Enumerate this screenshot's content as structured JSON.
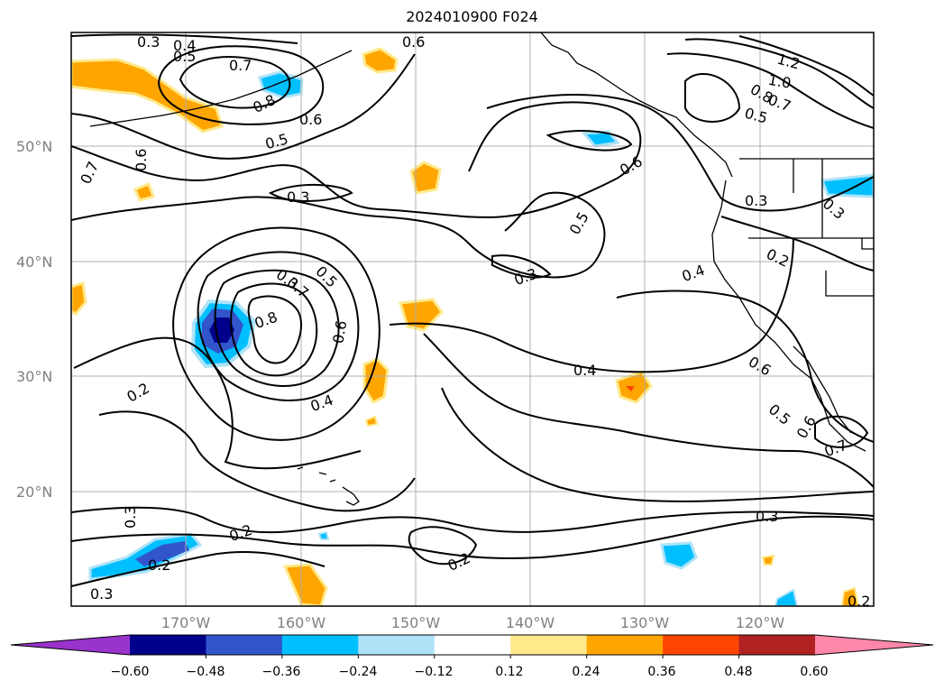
{
  "title": "2024010900 F024",
  "lat_labels": [
    "50°N",
    "40°N",
    "30°N",
    "20°N"
  ],
  "lon_labels": [
    "170°W",
    "160°W",
    "150°W",
    "140°W",
    "130°W",
    "120°W"
  ],
  "colorbar": {
    "ticks": [
      "−0.60",
      "−0.48",
      "−0.36",
      "−0.24",
      "−0.12",
      "0.12",
      "0.24",
      "0.36",
      "0.48",
      "0.60"
    ],
    "colors": [
      "#9933cc",
      "#00008b",
      "#3355cc",
      "#00bfff",
      "#aee3f8",
      "#ffffff",
      "#ffe98a",
      "#ffa500",
      "#ff4500",
      "#b22222",
      "#ff88aa"
    ]
  },
  "contour_labels": [
    "0.3",
    "0.4",
    "0.5",
    "0.6",
    "0.7",
    "0.8",
    "0.6",
    "0.5",
    "0.3",
    "0.7",
    "0.6",
    "0.6",
    "1.2",
    "1.0",
    "0.8",
    "0.7",
    "0.5",
    "0.3",
    "0.3",
    "0.5",
    "0.3",
    "0.4",
    "0.2",
    "0.3",
    "0.7",
    "0.5",
    "0.8",
    "0.6",
    "0.2",
    "0.4",
    "0.4",
    "0.6",
    "0.5",
    "0.6",
    "0.7",
    "0.3",
    "0.2",
    "0.3",
    "0.2",
    "0.3",
    "0.2",
    "0.2"
  ]
}
